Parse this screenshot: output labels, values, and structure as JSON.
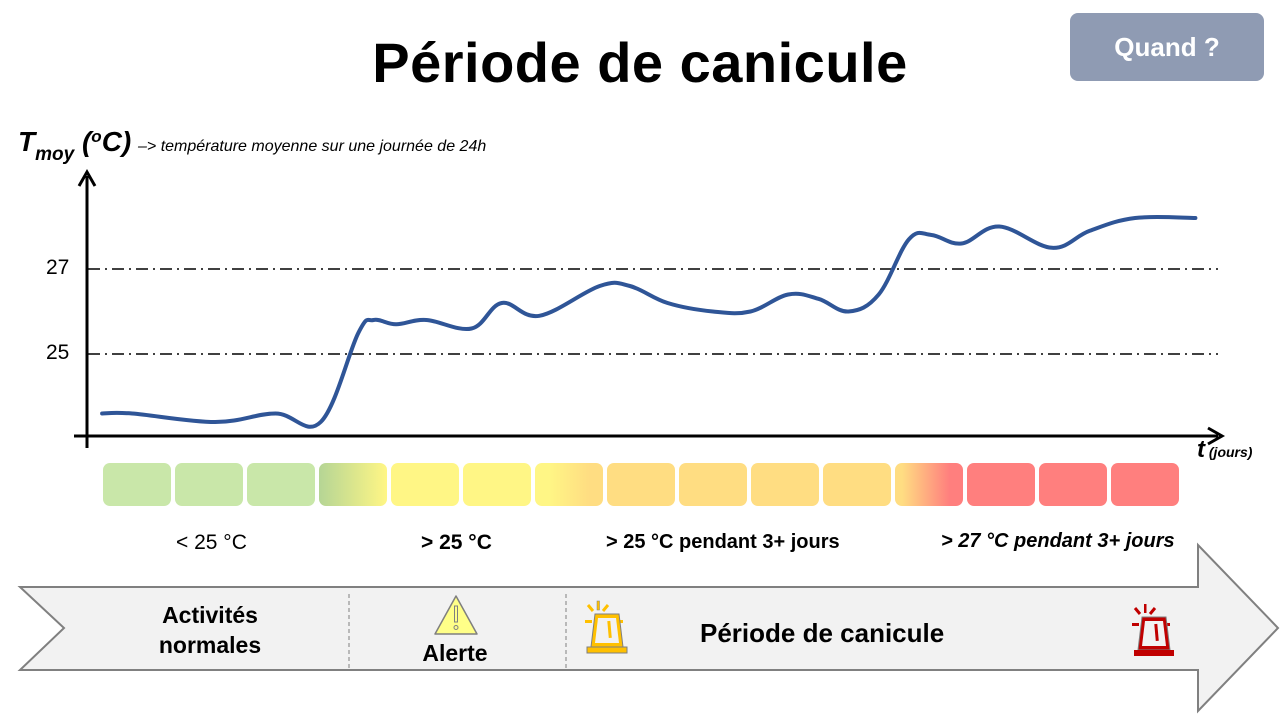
{
  "header": {
    "title": "Période de canicule",
    "quand_button": "Quand ?"
  },
  "axes": {
    "y_label_main": "T",
    "y_label_sub": "moy",
    "y_label_unit_open": " (",
    "y_label_unit_sup": "o",
    "y_label_unit_close": "C)",
    "y_label_note": "–> température moyenne sur une journée de 24h",
    "y_ticks": [
      "27",
      "25"
    ],
    "x_label_main": "t",
    "x_label_unit": " (jours)"
  },
  "colors": {
    "curve": "#2f5597",
    "green": "#c9e7a9",
    "yellow": "#fff685",
    "orange": "#ffdd82",
    "red": "#ff7f7e",
    "button": "#8f9bb3",
    "band_fill": "#f2f2f2",
    "band_stroke": "#808080",
    "siren_yellow": "#ffc000",
    "siren_red": "#c00000",
    "warning_fill": "#ffff88"
  },
  "day_cells": [
    {
      "day": 1,
      "color": "green"
    },
    {
      "day": 2,
      "color": "green"
    },
    {
      "day": 3,
      "color": "green"
    },
    {
      "day": 4,
      "color": "green-to-yellow"
    },
    {
      "day": 5,
      "color": "yellow"
    },
    {
      "day": 6,
      "color": "yellow"
    },
    {
      "day": 7,
      "color": "yellow-to-orange"
    },
    {
      "day": 8,
      "color": "orange"
    },
    {
      "day": 9,
      "color": "orange"
    },
    {
      "day": 10,
      "color": "orange"
    },
    {
      "day": 11,
      "color": "orange"
    },
    {
      "day": 12,
      "color": "orange-to-red"
    },
    {
      "day": 13,
      "color": "red"
    },
    {
      "day": 14,
      "color": "red"
    },
    {
      "day": 15,
      "color": "red"
    }
  ],
  "conditions": {
    "normal": "< 25 °C",
    "alert": "> 25 °C",
    "heatwave": "> 25 °C pendant 3+ jours",
    "severe": "> 27 °C pendant 3+ jours"
  },
  "stages": {
    "normal_line1": "Activités",
    "normal_line2": "normales",
    "alert": "Alerte",
    "heatwave": "Période de canicule"
  },
  "chart_data": {
    "type": "line",
    "title": "Période de canicule",
    "xlabel": "t (jours)",
    "ylabel": "Tmoy (°C)",
    "y_ticks": [
      25,
      27
    ],
    "reference_lines": [
      {
        "y": 25,
        "style": "dash-dot"
      },
      {
        "y": 27,
        "style": "dash-dot"
      }
    ],
    "x_range": [
      0,
      15
    ],
    "ylim": [
      23.1,
      28.8
    ],
    "series": [
      {
        "name": "Tmoy",
        "x": [
          0.2,
          0.6,
          1.7,
          2.5,
          3.1,
          3.6,
          3.8,
          4.1,
          4.5,
          5.1,
          5.5,
          6.0,
          6.8,
          7.2,
          7.7,
          8.3,
          8.8,
          9.3,
          9.7,
          10.1,
          10.5,
          10.9,
          11.2,
          11.6,
          12.1,
          12.8,
          13.3,
          13.9,
          14.7
        ],
        "values": [
          23.6,
          23.6,
          23.4,
          23.6,
          23.4,
          25.5,
          25.8,
          25.7,
          25.8,
          25.6,
          26.2,
          25.9,
          26.6,
          26.6,
          26.2,
          26.0,
          26.0,
          26.4,
          26.3,
          26.0,
          26.4,
          27.7,
          27.8,
          27.6,
          28.0,
          27.5,
          27.9,
          28.2,
          28.2
        ]
      }
    ],
    "grid": false,
    "legend": "none"
  }
}
